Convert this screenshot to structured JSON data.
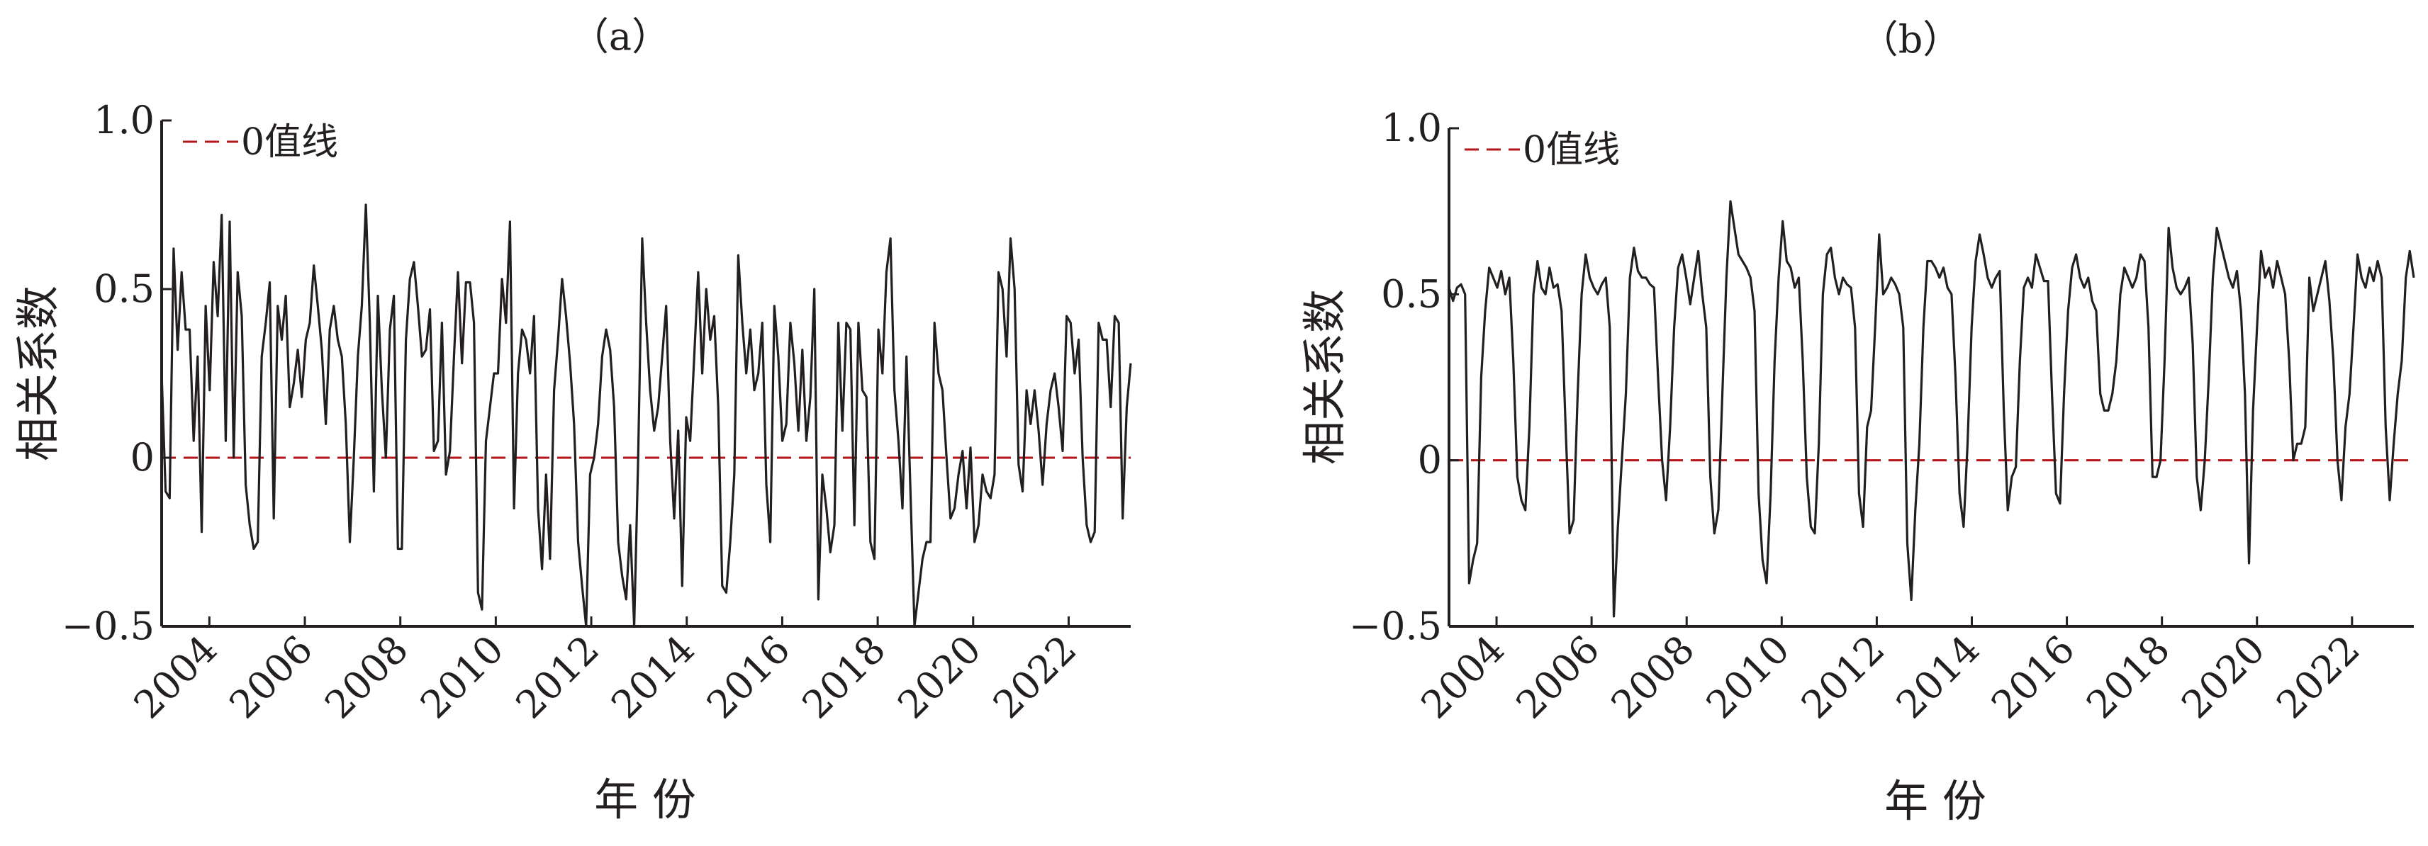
{
  "chart_data": [
    {
      "type": "line",
      "panel_label": "（a）",
      "xlabel": "年 份",
      "ylabel": "相关系数",
      "ylim": [
        -0.5,
        1.0
      ],
      "xlim": [
        2003.0,
        2023.3
      ],
      "yticks": [
        -0.5,
        0,
        0.5,
        1.0
      ],
      "ytick_labels": [
        "−0.5",
        "0",
        "0.5",
        "1.0"
      ],
      "xticks": [
        2004,
        2006,
        2008,
        2010,
        2012,
        2014,
        2016,
        2018,
        2020,
        2022
      ],
      "xtick_labels": [
        "2004",
        "2006",
        "2008",
        "2010",
        "2012",
        "2014",
        "2016",
        "2018",
        "2020",
        "2022"
      ],
      "legend": {
        "entry": "0值线",
        "placement": "top-left",
        "color": "#b3161b"
      },
      "reference_line": {
        "y": 0,
        "color": "#b3161b",
        "style": "dashed"
      },
      "series_color": "#231f20",
      "series": [
        {
          "values": [
            0.25,
            -0.1,
            -0.12,
            0.62,
            0.32,
            0.55,
            0.38,
            0.38,
            0.05,
            0.3,
            -0.22,
            0.45,
            0.2,
            0.58,
            0.42,
            0.72,
            0.05,
            0.7,
            0.0,
            0.55,
            0.42,
            -0.08,
            -0.2,
            -0.27,
            -0.25,
            0.3,
            0.4,
            0.52,
            -0.18,
            0.45,
            0.35,
            0.48,
            0.15,
            0.22,
            0.32,
            0.18,
            0.35,
            0.4,
            0.57,
            0.45,
            0.32,
            0.1,
            0.38,
            0.45,
            0.35,
            0.3,
            0.1,
            -0.25,
            0.0,
            0.3,
            0.45,
            0.75,
            0.4,
            -0.1,
            0.48,
            0.2,
            0.0,
            0.38,
            0.48,
            -0.27,
            -0.27,
            0.35,
            0.53,
            0.58,
            0.45,
            0.3,
            0.32,
            0.44,
            0.02,
            0.05,
            0.4,
            -0.05,
            0.02,
            0.3,
            0.55,
            0.28,
            0.52,
            0.52,
            0.4,
            -0.4,
            -0.45,
            0.05,
            0.15,
            0.25,
            0.25,
            0.53,
            0.4,
            0.7,
            -0.15,
            0.25,
            0.38,
            0.35,
            0.25,
            0.42,
            -0.15,
            -0.33,
            -0.05,
            -0.3,
            0.2,
            0.35,
            0.53,
            0.42,
            0.28,
            0.1,
            -0.25,
            -0.38,
            -0.5,
            -0.05,
            0.0,
            0.1,
            0.3,
            0.38,
            0.32,
            0.15,
            -0.25,
            -0.35,
            -0.42,
            -0.2,
            -0.5,
            0.0,
            0.65,
            0.4,
            0.2,
            0.08,
            0.15,
            0.3,
            0.45,
            0.05,
            -0.18,
            0.08,
            -0.38,
            0.12,
            0.05,
            0.3,
            0.55,
            0.25,
            0.5,
            0.35,
            0.42,
            0.15,
            -0.38,
            -0.4,
            -0.25,
            -0.05,
            0.6,
            0.4,
            0.25,
            0.38,
            0.2,
            0.25,
            0.4,
            -0.08,
            -0.25,
            0.45,
            0.3,
            0.05,
            0.1,
            0.4,
            0.28,
            0.08,
            0.32,
            0.05,
            0.18,
            0.5,
            -0.42,
            -0.05,
            -0.15,
            -0.28,
            -0.2,
            0.4,
            0.08,
            0.4,
            0.38,
            -0.2,
            0.4,
            0.2,
            0.18,
            -0.25,
            -0.3,
            0.38,
            0.25,
            0.55,
            0.65,
            0.2,
            0.05,
            -0.15,
            0.3,
            -0.1,
            -0.5,
            -0.4,
            -0.3,
            -0.25,
            -0.25,
            0.4,
            0.25,
            0.2,
            0.0,
            -0.18,
            -0.15,
            -0.05,
            0.02,
            -0.15,
            0.03,
            -0.25,
            -0.2,
            -0.05,
            -0.1,
            -0.12,
            -0.05,
            0.55,
            0.5,
            0.3,
            0.65,
            0.5,
            -0.02,
            -0.1,
            0.2,
            0.1,
            0.2,
            0.08,
            -0.08,
            0.1,
            0.2,
            0.25,
            0.15,
            0.02,
            0.42,
            0.4,
            0.25,
            0.35,
            0.0,
            -0.2,
            -0.25,
            -0.22,
            0.4,
            0.35,
            0.35,
            0.15,
            0.42,
            0.4,
            -0.18,
            0.15,
            0.28
          ]
        }
      ]
    },
    {
      "type": "line",
      "panel_label": "（b）",
      "xlabel": "年 份",
      "ylabel": "相关系数",
      "ylim": [
        -0.5,
        1.0
      ],
      "xlim": [
        2003.0,
        2023.3
      ],
      "yticks": [
        -0.5,
        0,
        0.5,
        1.0
      ],
      "ytick_labels": [
        "−0.5",
        "0",
        "0.5",
        "1.0"
      ],
      "xticks": [
        2004,
        2006,
        2008,
        2010,
        2012,
        2014,
        2016,
        2018,
        2020,
        2022
      ],
      "xtick_labels": [
        "2004",
        "2006",
        "2008",
        "2010",
        "2012",
        "2014",
        "2016",
        "2018",
        "2020",
        "2022"
      ],
      "legend": {
        "entry": "0值线",
        "placement": "top-left",
        "color": "#b3161b"
      },
      "reference_line": {
        "y": 0,
        "color": "#b3161b",
        "style": "dashed"
      },
      "series_color": "#231f20",
      "series": [
        {
          "values": [
            0.52,
            0.48,
            0.52,
            0.53,
            0.5,
            -0.37,
            -0.3,
            -0.25,
            0.25,
            0.45,
            0.58,
            0.55,
            0.52,
            0.57,
            0.5,
            0.55,
            0.3,
            -0.05,
            -0.12,
            -0.15,
            0.1,
            0.5,
            0.6,
            0.52,
            0.5,
            0.58,
            0.52,
            0.53,
            0.45,
            0.1,
            -0.22,
            -0.18,
            0.2,
            0.5,
            0.62,
            0.55,
            0.52,
            0.5,
            0.53,
            0.55,
            0.4,
            -0.47,
            -0.2,
            0.0,
            0.2,
            0.55,
            0.64,
            0.57,
            0.55,
            0.55,
            0.53,
            0.52,
            0.25,
            0.0,
            -0.12,
            0.1,
            0.4,
            0.58,
            0.62,
            0.55,
            0.47,
            0.55,
            0.63,
            0.5,
            0.4,
            -0.05,
            -0.22,
            -0.15,
            0.2,
            0.55,
            0.78,
            0.7,
            0.62,
            0.6,
            0.58,
            0.55,
            0.45,
            -0.1,
            -0.3,
            -0.37,
            -0.1,
            0.3,
            0.55,
            0.72,
            0.6,
            0.58,
            0.52,
            0.55,
            0.3,
            -0.05,
            -0.2,
            -0.22,
            0.05,
            0.5,
            0.62,
            0.64,
            0.55,
            0.5,
            0.55,
            0.53,
            0.52,
            0.4,
            -0.1,
            -0.2,
            0.1,
            0.15,
            0.4,
            0.68,
            0.5,
            0.52,
            0.55,
            0.53,
            0.5,
            0.4,
            -0.25,
            -0.42,
            -0.15,
            0.05,
            0.4,
            0.6,
            0.6,
            0.58,
            0.55,
            0.58,
            0.52,
            0.5,
            0.25,
            -0.1,
            -0.2,
            0.05,
            0.4,
            0.6,
            0.68,
            0.62,
            0.55,
            0.52,
            0.55,
            0.57,
            0.15,
            -0.15,
            -0.05,
            -0.02,
            0.3,
            0.52,
            0.55,
            0.52,
            0.62,
            0.58,
            0.54,
            0.54,
            0.2,
            -0.1,
            -0.13,
            0.2,
            0.45,
            0.58,
            0.62,
            0.55,
            0.52,
            0.55,
            0.48,
            0.45,
            0.2,
            0.15,
            0.15,
            0.2,
            0.3,
            0.5,
            0.58,
            0.55,
            0.52,
            0.55,
            0.62,
            0.6,
            0.4,
            -0.05,
            -0.05,
            0.0,
            0.3,
            0.7,
            0.58,
            0.52,
            0.5,
            0.52,
            0.55,
            0.35,
            -0.05,
            -0.15,
            0.0,
            0.25,
            0.55,
            0.7,
            0.65,
            0.6,
            0.55,
            0.52,
            0.57,
            0.45,
            0.2,
            -0.31,
            0.15,
            0.4,
            0.63,
            0.55,
            0.58,
            0.52,
            0.6,
            0.55,
            0.5,
            0.3,
            0.0,
            0.05,
            0.05,
            0.1,
            0.55,
            0.45,
            0.5,
            0.55,
            0.6,
            0.48,
            0.3,
            0.0,
            -0.12,
            0.1,
            0.2,
            0.4,
            0.62,
            0.55,
            0.52,
            0.58,
            0.54,
            0.6,
            0.55,
            0.1,
            -0.12,
            0.05,
            0.2,
            0.3,
            0.55,
            0.63,
            0.55
          ]
        }
      ]
    }
  ]
}
